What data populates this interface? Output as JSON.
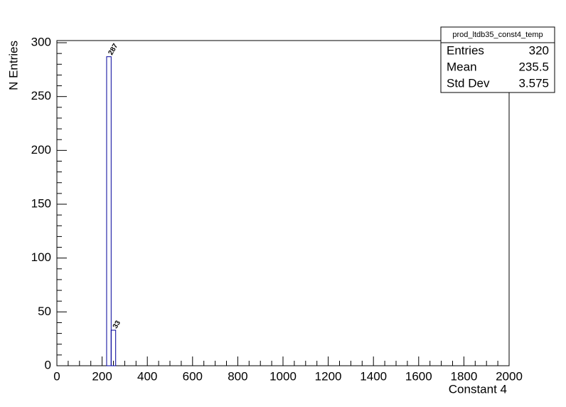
{
  "chart_data": {
    "type": "histogram",
    "x_label": "Constant 4",
    "y_label": "N Entries",
    "bins": [
      220,
      240,
      260
    ],
    "counts": [
      287,
      33
    ],
    "color": "#000099",
    "xlim": [
      0,
      2000
    ],
    "ylim": [
      0,
      302
    ],
    "xticks": [
      0,
      200,
      400,
      600,
      800,
      1000,
      1200,
      1400,
      1600,
      1800,
      2000
    ],
    "yticks": [
      0,
      50,
      100,
      150,
      200,
      250,
      300
    ],
    "stats": {
      "title": "prod_ltdb35_const4_temp",
      "rows": [
        {
          "label": "Entries",
          "value": 320
        },
        {
          "label": "Mean",
          "value": 235.5
        },
        {
          "label": "Std Dev",
          "value": 3.575
        }
      ]
    }
  }
}
